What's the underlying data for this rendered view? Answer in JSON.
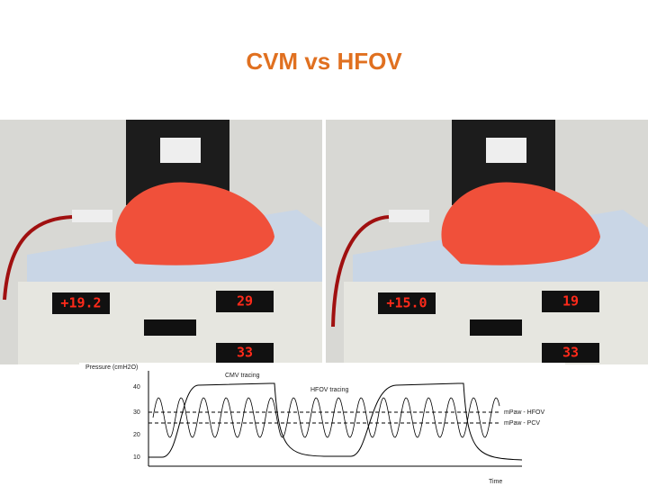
{
  "title": "CVM vs HFOV",
  "photos": [
    {
      "displays": [
        "+19.2",
        "29",
        "33"
      ]
    },
    {
      "displays": [
        "+15.0",
        "19",
        "33"
      ]
    }
  ],
  "diagram": {
    "y_label": "Pressure (cmH2O)",
    "yticks": [
      "40",
      "30",
      "20",
      "10"
    ],
    "x_label": "Time",
    "traces": [
      "CMV tracing",
      "HFOV tracing"
    ],
    "levels": [
      "mPaw - HFOV",
      "mPaw - PCV"
    ]
  }
}
